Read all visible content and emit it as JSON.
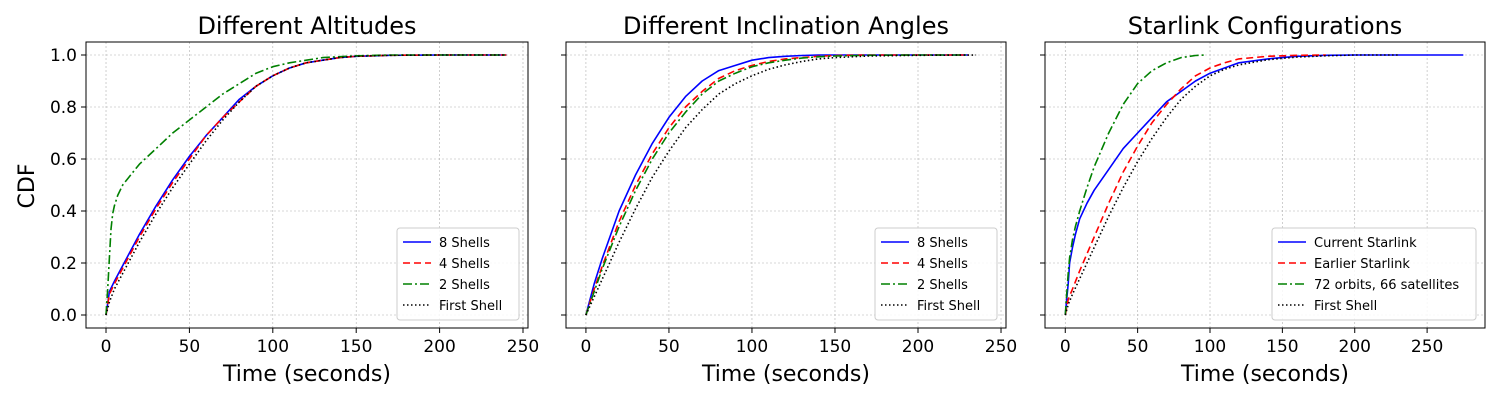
{
  "figure": {
    "ylabel": "CDF"
  },
  "chart_data": [
    {
      "type": "line",
      "title": "Different Altitudes",
      "xlabel": "Time (seconds)",
      "ylabel": "CDF",
      "xlim": [
        -12,
        253
      ],
      "ylim": [
        -0.05,
        1.05
      ],
      "xticks": [
        "0",
        "50",
        "100",
        "150",
        "200",
        "250"
      ],
      "yticks": [
        "0.0",
        "0.2",
        "0.4",
        "0.6",
        "0.8",
        "1.0"
      ],
      "grid": true,
      "legend_position": "lower right",
      "series": [
        {
          "name": "8 Shells",
          "color": "#0000ff",
          "dash": "solid",
          "x": [
            0,
            2,
            5,
            10,
            20,
            30,
            40,
            50,
            60,
            70,
            80,
            90,
            100,
            110,
            120,
            130,
            140,
            150,
            170,
            200,
            240
          ],
          "y": [
            0,
            0.09,
            0.13,
            0.19,
            0.31,
            0.42,
            0.52,
            0.61,
            0.69,
            0.76,
            0.83,
            0.88,
            0.92,
            0.95,
            0.97,
            0.98,
            0.99,
            0.995,
            0.999,
            1.0,
            1.0
          ]
        },
        {
          "name": "4 Shells",
          "color": "#ff0000",
          "dash": "dashed",
          "x": [
            0,
            2,
            5,
            10,
            20,
            30,
            40,
            50,
            60,
            70,
            80,
            90,
            100,
            110,
            120,
            130,
            140,
            150,
            170,
            200,
            240
          ],
          "y": [
            0,
            0.08,
            0.12,
            0.18,
            0.3,
            0.41,
            0.51,
            0.6,
            0.69,
            0.76,
            0.82,
            0.88,
            0.92,
            0.95,
            0.97,
            0.98,
            0.99,
            0.995,
            0.999,
            1.0,
            1.0
          ]
        },
        {
          "name": "2 Shells",
          "color": "#008000",
          "dash": "dashdot",
          "x": [
            0,
            1,
            2,
            3,
            4,
            5,
            7,
            10,
            15,
            20,
            30,
            40,
            50,
            60,
            70,
            80,
            90,
            100,
            110,
            120,
            130,
            150,
            170,
            200,
            240
          ],
          "y": [
            0,
            0.1,
            0.22,
            0.33,
            0.39,
            0.42,
            0.46,
            0.5,
            0.54,
            0.58,
            0.64,
            0.7,
            0.75,
            0.8,
            0.85,
            0.89,
            0.93,
            0.955,
            0.97,
            0.98,
            0.99,
            0.997,
            1.0,
            1.0,
            1.0
          ]
        },
        {
          "name": "First Shell",
          "color": "#000000",
          "dash": "dotted",
          "x": [
            0,
            2,
            5,
            10,
            20,
            30,
            40,
            50,
            60,
            70,
            80,
            90,
            100,
            110,
            120,
            130,
            140,
            150,
            170,
            200,
            240
          ],
          "y": [
            0,
            0.05,
            0.1,
            0.16,
            0.28,
            0.39,
            0.49,
            0.58,
            0.67,
            0.75,
            0.82,
            0.88,
            0.92,
            0.95,
            0.97,
            0.98,
            0.99,
            0.995,
            0.999,
            1.0,
            1.0
          ]
        }
      ]
    },
    {
      "type": "line",
      "title": "Different Inclination Angles",
      "xlabel": "Time (seconds)",
      "ylabel": "",
      "xlim": [
        -12,
        253
      ],
      "ylim": [
        -0.05,
        1.05
      ],
      "xticks": [
        "0",
        "50",
        "100",
        "150",
        "200",
        "250"
      ],
      "yticks": [
        "0.0",
        "0.2",
        "0.4",
        "0.6",
        "0.8",
        "1.0"
      ],
      "grid": true,
      "legend_position": "lower right",
      "series": [
        {
          "name": "8 Shells",
          "color": "#0000ff",
          "dash": "solid",
          "x": [
            0,
            5,
            10,
            20,
            30,
            40,
            50,
            60,
            70,
            80,
            90,
            100,
            110,
            120,
            130,
            140,
            150,
            170,
            200,
            230
          ],
          "y": [
            0,
            0.12,
            0.22,
            0.4,
            0.54,
            0.66,
            0.76,
            0.84,
            0.9,
            0.94,
            0.96,
            0.98,
            0.99,
            0.995,
            0.998,
            1.0,
            1.0,
            1.0,
            1.0,
            1.0
          ]
        },
        {
          "name": "4 Shells",
          "color": "#ff0000",
          "dash": "dashed",
          "x": [
            0,
            5,
            10,
            20,
            30,
            40,
            50,
            60,
            70,
            80,
            90,
            100,
            110,
            120,
            130,
            140,
            150,
            170,
            200,
            230
          ],
          "y": [
            0,
            0.1,
            0.19,
            0.36,
            0.5,
            0.62,
            0.72,
            0.8,
            0.86,
            0.91,
            0.94,
            0.96,
            0.975,
            0.985,
            0.99,
            0.995,
            0.998,
            1.0,
            1.0,
            1.0
          ]
        },
        {
          "name": "2 Shells",
          "color": "#008000",
          "dash": "dashdot",
          "x": [
            0,
            5,
            10,
            20,
            30,
            40,
            50,
            60,
            70,
            80,
            90,
            100,
            110,
            120,
            130,
            140,
            150,
            170,
            200,
            230
          ],
          "y": [
            0,
            0.09,
            0.18,
            0.34,
            0.48,
            0.6,
            0.7,
            0.78,
            0.85,
            0.9,
            0.93,
            0.955,
            0.97,
            0.98,
            0.988,
            0.993,
            0.996,
            0.999,
            1.0,
            1.0
          ]
        },
        {
          "name": "First Shell",
          "color": "#000000",
          "dash": "dotted",
          "x": [
            0,
            5,
            10,
            20,
            30,
            40,
            50,
            60,
            70,
            80,
            90,
            100,
            110,
            120,
            130,
            140,
            150,
            170,
            200,
            235
          ],
          "y": [
            0,
            0.07,
            0.14,
            0.28,
            0.41,
            0.53,
            0.63,
            0.72,
            0.79,
            0.85,
            0.89,
            0.92,
            0.945,
            0.962,
            0.975,
            0.985,
            0.99,
            0.996,
            0.999,
            1.0
          ]
        }
      ]
    },
    {
      "type": "line",
      "title": "Starlink Configurations",
      "xlabel": "Time (seconds)",
      "ylabel": "",
      "xlim": [
        -14,
        290
      ],
      "ylim": [
        -0.05,
        1.05
      ],
      "xticks": [
        "0",
        "50",
        "100",
        "150",
        "200",
        "250"
      ],
      "yticks": [
        "0.0",
        "0.2",
        "0.4",
        "0.6",
        "0.8",
        "1.0"
      ],
      "grid": true,
      "legend_position": "lower right",
      "series": [
        {
          "name": "Current Starlink",
          "color": "#0000ff",
          "dash": "solid",
          "x": [
            0,
            1,
            2,
            3,
            5,
            7,
            10,
            15,
            20,
            30,
            40,
            50,
            60,
            70,
            80,
            90,
            100,
            110,
            120,
            140,
            160,
            180,
            200,
            230,
            275
          ],
          "y": [
            0,
            0.06,
            0.12,
            0.2,
            0.26,
            0.31,
            0.37,
            0.43,
            0.48,
            0.56,
            0.64,
            0.7,
            0.76,
            0.82,
            0.86,
            0.9,
            0.93,
            0.95,
            0.97,
            0.985,
            0.995,
            0.999,
            1.0,
            1.0,
            1.0
          ]
        },
        {
          "name": "Earlier Starlink",
          "color": "#ff0000",
          "dash": "dashed",
          "x": [
            0,
            2,
            5,
            10,
            20,
            30,
            40,
            50,
            60,
            70,
            80,
            90,
            100,
            110,
            120,
            140,
            160,
            180
          ],
          "y": [
            0,
            0.06,
            0.1,
            0.17,
            0.3,
            0.43,
            0.55,
            0.65,
            0.74,
            0.81,
            0.87,
            0.92,
            0.95,
            0.97,
            0.985,
            0.995,
            0.999,
            1.0
          ]
        },
        {
          "name": "72 orbits, 66 satellites",
          "color": "#008000",
          "dash": "dashdot",
          "x": [
            0,
            1,
            2,
            3,
            5,
            7,
            10,
            15,
            20,
            30,
            40,
            50,
            60,
            70,
            80,
            90,
            97
          ],
          "y": [
            0,
            0.08,
            0.16,
            0.22,
            0.29,
            0.34,
            0.4,
            0.49,
            0.57,
            0.7,
            0.81,
            0.89,
            0.94,
            0.97,
            0.99,
            0.998,
            1.0
          ]
        },
        {
          "name": "First Shell",
          "color": "#000000",
          "dash": "dotted",
          "x": [
            0,
            2,
            5,
            10,
            20,
            30,
            40,
            50,
            60,
            70,
            80,
            90,
            100,
            110,
            120,
            140,
            160,
            180,
            200,
            230
          ],
          "y": [
            0,
            0.04,
            0.08,
            0.14,
            0.26,
            0.38,
            0.49,
            0.59,
            0.68,
            0.76,
            0.83,
            0.88,
            0.92,
            0.945,
            0.962,
            0.982,
            0.992,
            0.997,
            1.0,
            1.0
          ]
        }
      ]
    }
  ]
}
